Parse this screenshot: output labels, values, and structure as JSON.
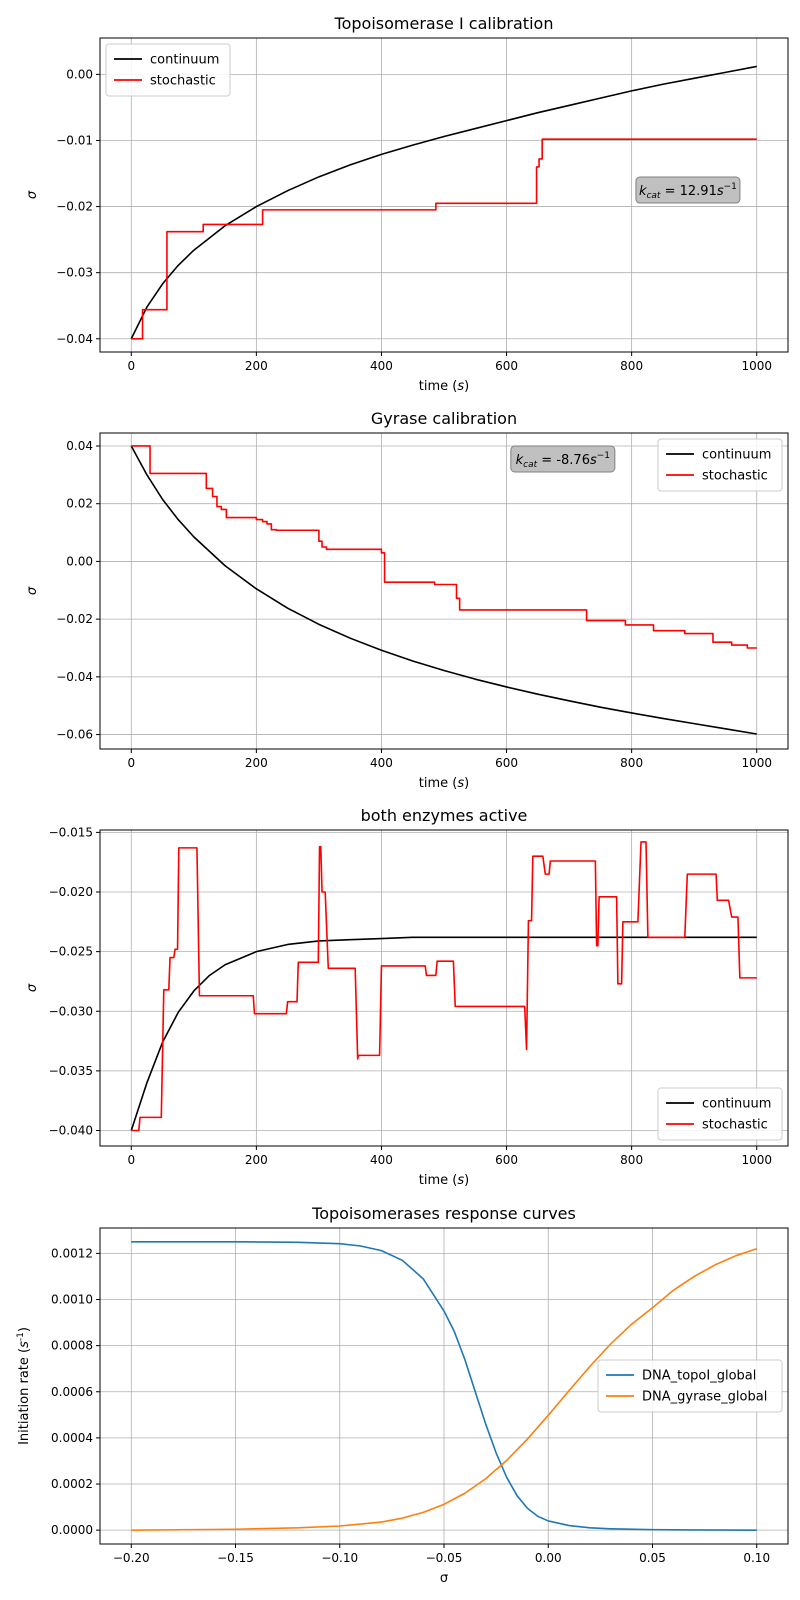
{
  "chart_data": [
    {
      "type": "line",
      "title": "Topoisomerase I calibration",
      "xlabel": "time ($s$)",
      "ylabel": "σ",
      "xlim": [
        -50,
        1050
      ],
      "ylim": [
        -0.042,
        0.0055
      ],
      "xticks": [
        0,
        200,
        400,
        600,
        800,
        1000
      ],
      "yticks": [
        -0.04,
        -0.03,
        -0.02,
        -0.01,
        0.0
      ],
      "ytick_labels": [
        "−0.04",
        "−0.03",
        "−0.02",
        "−0.01",
        "0.00"
      ],
      "grid": true,
      "legend_position": "upper-left",
      "annotation": {
        "text": "k_cat = 12.91s⁻¹",
        "x": 890,
        "y": -0.0175
      },
      "series": [
        {
          "name": "continuum",
          "color": "#000000",
          "x": [
            0,
            25,
            50,
            75,
            100,
            150,
            200,
            250,
            300,
            350,
            400,
            450,
            500,
            550,
            600,
            650,
            700,
            750,
            800,
            850,
            900,
            950,
            1000
          ],
          "y": [
            -0.04,
            -0.0352,
            -0.0317,
            -0.0289,
            -0.0266,
            -0.0229,
            -0.02,
            -0.0176,
            -0.0155,
            -0.0137,
            -0.0121,
            -0.0107,
            -0.0094,
            -0.0082,
            -0.007,
            -0.0058,
            -0.0047,
            -0.0036,
            -0.0025,
            -0.0015,
            -0.0006,
            0.0003,
            0.0012
          ]
        },
        {
          "name": "stochastic",
          "color": "#ff0000",
          "step": true,
          "x": [
            0,
            18,
            57,
            115,
            210,
            487,
            648,
            652,
            657,
            1000
          ],
          "y": [
            -0.04,
            -0.0356,
            -0.0238,
            -0.0227,
            -0.0205,
            -0.0195,
            -0.014,
            -0.0128,
            -0.0098,
            -0.0098
          ]
        }
      ]
    },
    {
      "type": "line",
      "title": "Gyrase calibration",
      "xlabel": "time ($s$)",
      "ylabel": "σ",
      "xlim": [
        -50,
        1050
      ],
      "ylim": [
        -0.065,
        0.0445
      ],
      "xticks": [
        0,
        200,
        400,
        600,
        800,
        1000
      ],
      "yticks": [
        -0.06,
        -0.04,
        -0.02,
        0.0,
        0.02,
        0.04
      ],
      "ytick_labels": [
        "−0.06",
        "−0.04",
        "−0.02",
        "0.00",
        "0.02",
        "0.04"
      ],
      "grid": true,
      "legend_position": "upper-right",
      "annotation": {
        "text": "k_cat = -8.76s⁻¹",
        "x": 690,
        "y": 0.0355
      },
      "series": [
        {
          "name": "continuum",
          "color": "#000000",
          "x": [
            0,
            25,
            50,
            75,
            100,
            150,
            200,
            250,
            300,
            350,
            400,
            450,
            500,
            550,
            600,
            650,
            700,
            750,
            800,
            850,
            900,
            950,
            1000
          ],
          "y": [
            0.04,
            0.03,
            0.0215,
            0.0145,
            0.0085,
            -0.0015,
            -0.0095,
            -0.0162,
            -0.0218,
            -0.0266,
            -0.0308,
            -0.0345,
            -0.0378,
            -0.0408,
            -0.0435,
            -0.046,
            -0.0483,
            -0.0505,
            -0.0525,
            -0.0544,
            -0.0562,
            -0.058,
            -0.0598
          ]
        },
        {
          "name": "stochastic",
          "color": "#ff0000",
          "step": true,
          "x": [
            0,
            30,
            120,
            130,
            137,
            144,
            152,
            200,
            210,
            217,
            224,
            232,
            300,
            305,
            312,
            400,
            405,
            412,
            485,
            520,
            525,
            720,
            728,
            790,
            835,
            885,
            930,
            960,
            985,
            1000
          ],
          "y": [
            0.04,
            0.0305,
            0.0253,
            0.0225,
            0.019,
            0.018,
            0.0152,
            0.0145,
            0.0138,
            0.013,
            0.011,
            0.0108,
            0.007,
            0.005,
            0.0042,
            0.003,
            -0.0072,
            -0.0072,
            -0.008,
            -0.0128,
            -0.0168,
            -0.0168,
            -0.0205,
            -0.022,
            -0.024,
            -0.025,
            -0.028,
            -0.029,
            -0.03,
            -0.03
          ]
        }
      ]
    },
    {
      "type": "line",
      "title": "both enzymes active",
      "xlabel": "time ($s$)",
      "ylabel": "σ",
      "xlim": [
        -50,
        1050
      ],
      "ylim": [
        -0.0413,
        -0.0148
      ],
      "xticks": [
        0,
        200,
        400,
        600,
        800,
        1000
      ],
      "yticks": [
        -0.04,
        -0.035,
        -0.03,
        -0.025,
        -0.02,
        -0.015
      ],
      "ytick_labels": [
        "−0.040",
        "−0.035",
        "−0.030",
        "−0.025",
        "−0.020",
        "−0.015"
      ],
      "grid": true,
      "legend_position": "lower-right",
      "series": [
        {
          "name": "continuum",
          "color": "#000000",
          "x": [
            0,
            25,
            50,
            75,
            100,
            125,
            150,
            200,
            250,
            300,
            350,
            400,
            450,
            500,
            600,
            700,
            800,
            900,
            1000
          ],
          "y": [
            -0.04,
            -0.036,
            -0.0326,
            -0.0301,
            -0.0283,
            -0.027,
            -0.0261,
            -0.025,
            -0.0244,
            -0.0241,
            -0.024,
            -0.0239,
            -0.0238,
            -0.0238,
            -0.0238,
            -0.0238,
            -0.0238,
            -0.0238,
            -0.0238
          ]
        },
        {
          "name": "stochastic",
          "color": "#ff0000",
          "x": [
            0,
            12,
            14,
            48,
            52,
            60,
            62,
            68,
            70,
            74,
            76,
            105,
            109,
            195,
            197,
            248,
            250,
            265,
            267,
            299,
            301,
            303,
            305,
            310,
            315,
            358,
            362,
            363,
            397,
            400,
            470,
            472,
            487,
            489,
            515,
            518,
            629,
            632,
            635,
            640,
            642,
            658,
            662,
            668,
            670,
            685,
            688,
            742,
            744,
            746,
            748,
            776,
            778,
            780,
            782,
            784,
            786,
            788,
            790,
            810,
            815,
            823,
            826,
            885,
            889,
            935,
            937,
            955,
            960,
            970,
            973,
            978,
            980,
            1000
          ],
          "y": [
            -0.04,
            -0.04,
            -0.0389,
            -0.0389,
            -0.0282,
            -0.0282,
            -0.0255,
            -0.0255,
            -0.0248,
            -0.0248,
            -0.0163,
            -0.0163,
            -0.0287,
            -0.0287,
            -0.0302,
            -0.0302,
            -0.0292,
            -0.0292,
            -0.0259,
            -0.0259,
            -0.0162,
            -0.0162,
            -0.02,
            -0.02,
            -0.0264,
            -0.0264,
            -0.034,
            -0.0337,
            -0.0337,
            -0.0262,
            -0.0262,
            -0.027,
            -0.027,
            -0.0258,
            -0.0258,
            -0.0296,
            -0.0296,
            -0.0332,
            -0.0224,
            -0.0224,
            -0.017,
            -0.017,
            -0.0185,
            -0.0185,
            -0.0174,
            -0.0174,
            -0.0174,
            -0.0174,
            -0.0245,
            -0.0245,
            -0.0204,
            -0.0204,
            -0.0277,
            -0.0277,
            -0.0277,
            -0.0277,
            -0.0225,
            -0.0225,
            -0.0225,
            -0.0225,
            -0.0158,
            -0.0158,
            -0.0238,
            -0.0238,
            -0.0185,
            -0.0185,
            -0.0207,
            -0.0207,
            -0.0221,
            -0.0221,
            -0.0272,
            -0.0272,
            -0.0272,
            -0.0272
          ]
        }
      ]
    },
    {
      "type": "line",
      "title": "Topoisomerases response curves",
      "xlabel": "σ",
      "ylabel": "Initiation rate ($s^{-1}$)",
      "xlim": [
        -0.215,
        0.115
      ],
      "ylim": [
        -6e-05,
        0.00131
      ],
      "xticks": [
        -0.2,
        -0.15,
        -0.1,
        -0.05,
        0.0,
        0.05,
        0.1
      ],
      "xtick_labels": [
        "−0.20",
        "−0.15",
        "−0.10",
        "−0.05",
        "0.00",
        "0.05",
        "0.10"
      ],
      "yticks": [
        0.0,
        0.0002,
        0.0004,
        0.0006,
        0.0008,
        0.001,
        0.0012
      ],
      "ytick_labels": [
        "0.0000",
        "0.0002",
        "0.0004",
        "0.0006",
        "0.0008",
        "0.0010",
        "0.0012"
      ],
      "grid": true,
      "legend_position": "center-right",
      "series": [
        {
          "name": "DNA_topoI_global",
          "color": "#1f77b4",
          "x": [
            -0.2,
            -0.15,
            -0.12,
            -0.1,
            -0.09,
            -0.08,
            -0.07,
            -0.06,
            -0.05,
            -0.045,
            -0.04,
            -0.035,
            -0.03,
            -0.025,
            -0.02,
            -0.015,
            -0.01,
            -0.005,
            0.0,
            0.01,
            0.02,
            0.03,
            0.05,
            0.07,
            0.1
          ],
          "y": [
            0.00125,
            0.00125,
            0.001248,
            0.001242,
            0.001232,
            0.001212,
            0.00117,
            0.00109,
            0.00095,
            0.00086,
            0.00074,
            0.0006,
            0.00046,
            0.000335,
            0.00023,
            0.00015,
            9.5e-05,
            6e-05,
            4e-05,
            2e-05,
            1e-05,
            6e-06,
            2e-06,
            1e-06,
            0.0
          ]
        },
        {
          "name": "DNA_gyrase_global",
          "color": "#ff7f0e",
          "x": [
            -0.2,
            -0.15,
            -0.12,
            -0.1,
            -0.08,
            -0.07,
            -0.06,
            -0.05,
            -0.04,
            -0.03,
            -0.02,
            -0.01,
            0.0,
            0.01,
            0.02,
            0.03,
            0.04,
            0.05,
            0.06,
            0.07,
            0.08,
            0.09,
            0.1
          ],
          "y": [
            0.0,
            4e-06,
            1e-05,
            1.8e-05,
            3.5e-05,
            5.2e-05,
            7.7e-05,
            0.000112,
            0.00016,
            0.000223,
            0.000302,
            0.000395,
            0.000498,
            0.000605,
            0.00071,
            0.000808,
            0.000893,
            0.000964,
            0.00104,
            0.0011,
            0.00115,
            0.00119,
            0.00122
          ]
        }
      ]
    }
  ]
}
